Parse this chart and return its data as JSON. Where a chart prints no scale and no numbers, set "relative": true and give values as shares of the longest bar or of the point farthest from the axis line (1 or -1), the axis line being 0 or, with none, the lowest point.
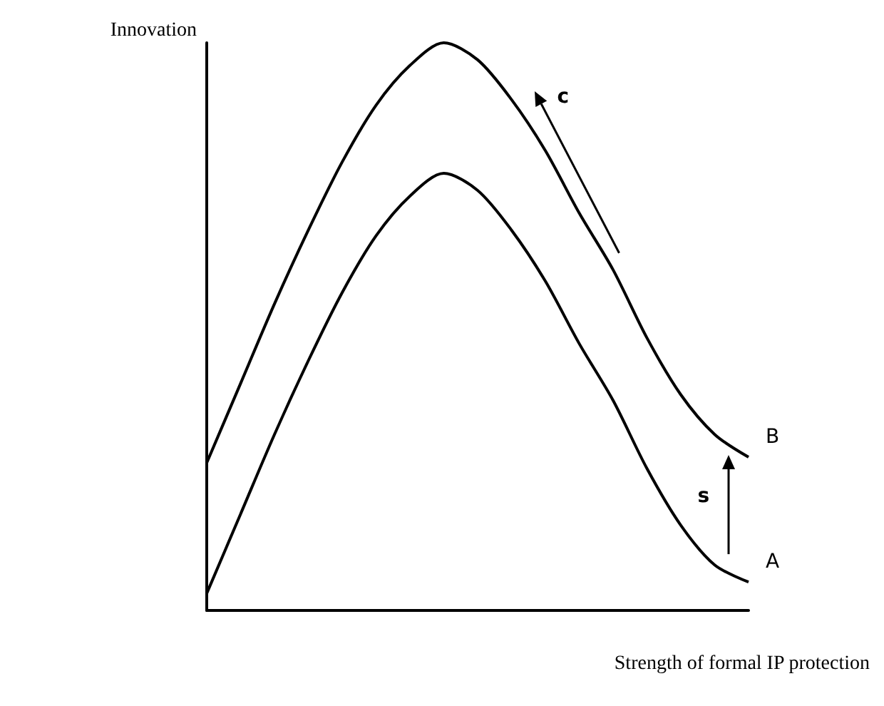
{
  "chart_data": {
    "type": "line",
    "relative": true,
    "xlabel": "Strength of formal IP protection",
    "ylabel": "Innovation",
    "categories": [
      null,
      null,
      null,
      null,
      null,
      null,
      null,
      null,
      null,
      null,
      null,
      null,
      null,
      null,
      null,
      null,
      null
    ],
    "series": [
      {
        "name": "B",
        "color": "#000000",
        "values": [
          0.26,
          0.4,
          0.54,
          0.67,
          0.79,
          0.89,
          0.96,
          1,
          0.97,
          0.9,
          0.81,
          0.7,
          0.6,
          0.48,
          0.38,
          0.31,
          0.27
        ]
      },
      {
        "name": "A",
        "color": "#000000",
        "values": [
          0.03,
          0.17,
          0.31,
          0.44,
          0.56,
          0.66,
          0.73,
          0.77,
          0.74,
          0.67,
          0.58,
          0.47,
          0.37,
          0.25,
          0.15,
          0.08,
          0.05
        ]
      }
    ],
    "annotations": [
      "c",
      "s"
    ],
    "grid": false,
    "legend": false,
    "marker": "none",
    "line_style": "solid"
  }
}
